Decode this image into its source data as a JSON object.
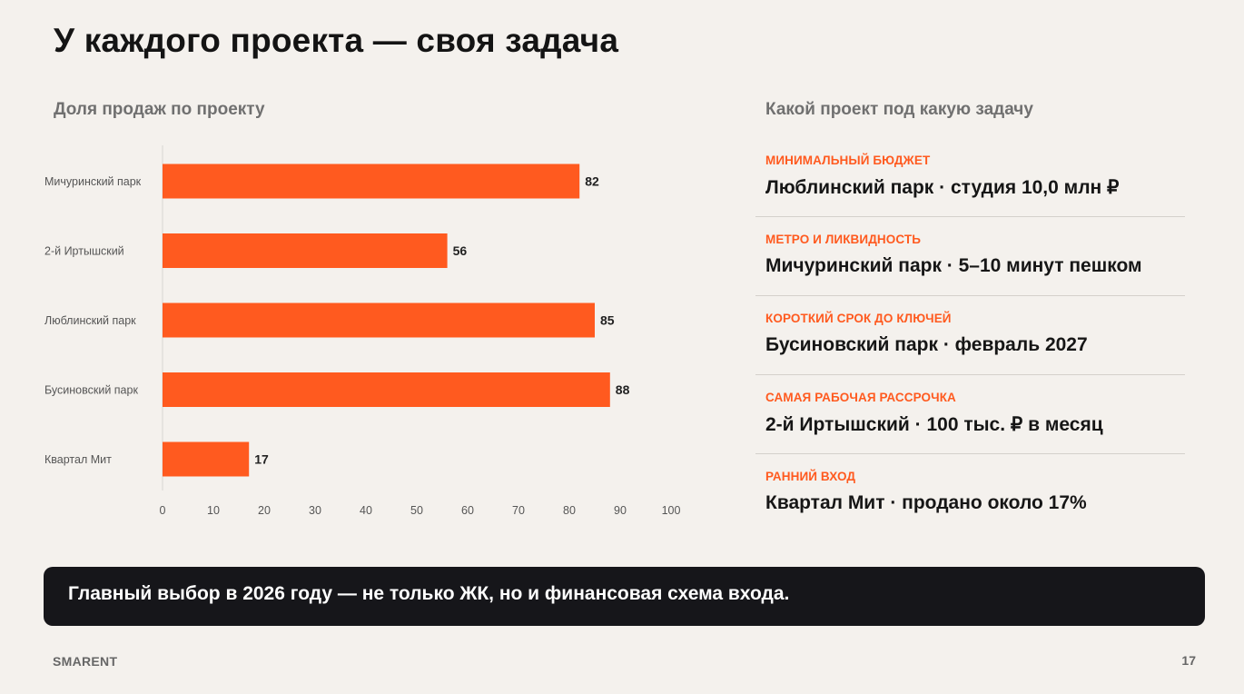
{
  "title": "У каждого проекта — своя задача",
  "chart_heading": "Доля продаж по проекту",
  "chart_data": {
    "type": "bar",
    "orientation": "horizontal",
    "categories": [
      "Мичуринский парк",
      "2-й Иртышский",
      "Люблинский парк",
      "Бусиновский парк",
      "Квартал Мит"
    ],
    "values": [
      82,
      56,
      85,
      88,
      17
    ],
    "xlim": [
      0,
      100
    ],
    "x_ticks": [
      0,
      10,
      20,
      30,
      40,
      50,
      60,
      70,
      80,
      90,
      100
    ],
    "grid": false,
    "bar_color": "#ff5a1f"
  },
  "panel": {
    "heading": "Какой проект под какую задачу",
    "items": [
      {
        "tag": "Минимальный бюджет",
        "value": "Люблинский парк · студия 10,0 млн ₽"
      },
      {
        "tag": "Метро и ликвидность",
        "value": "Мичуринский парк · 5–10 минут пешком"
      },
      {
        "tag": "Короткий срок до ключей",
        "value": "Бусиновский парк · февраль 2027"
      },
      {
        "tag": "Самая рабочая рассрочка",
        "value": "2-й Иртышский · 100 тыс. ₽ в месяц"
      },
      {
        "tag": "Ранний вход",
        "value": "Квартал Мит · продано около 17%"
      }
    ]
  },
  "banner": "Главный выбор в 2026 году — не только ЖК, но и финансовая схема входа.",
  "footer": {
    "brand": "SMARENT",
    "page": "17"
  },
  "colors": {
    "accent": "#ff5a1f",
    "background": "#f4f1ed",
    "banner_bg": "#16161a"
  }
}
